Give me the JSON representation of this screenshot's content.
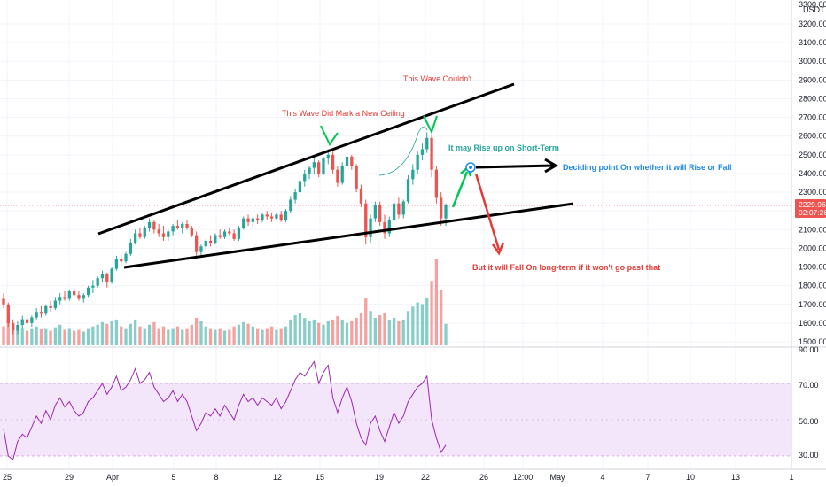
{
  "price_axis": {
    "currency": "USDT",
    "last_price": "2229.96",
    "countdown": "02:07:26",
    "ticks": [
      "3200.00",
      "3100.00",
      "3000.00",
      "2900.00",
      "2800.00",
      "2700.00",
      "2600.00",
      "2500.00",
      "2400.00",
      "2300.00",
      "2200.00",
      "2100.00",
      "2000.00",
      "1900.00",
      "1800.00",
      "1700.00",
      "1600.00",
      "1500.00"
    ],
    "top_partial": "3300.00"
  },
  "rsi_axis": {
    "ticks": [
      "90.00",
      "70.00",
      "50.00",
      "30.00"
    ]
  },
  "time_axis": {
    "labels": [
      "25",
      "29",
      "Apr",
      "5",
      "8",
      "12",
      "15",
      "19",
      "22",
      "26",
      "12:00",
      "May",
      "4",
      "7",
      "10",
      "13",
      "1"
    ]
  },
  "annotations": {
    "new_ceiling": "This Wave Did Mark a New Ceiling",
    "couldnt": "This Wave Couldn't",
    "rise_short": "It may Rise up on Short-Term",
    "deciding": "Deciding point On whether it will Rise or Fall",
    "fall_long": "But it will Fall On long-term if it won't go past that"
  },
  "colors": {
    "up": "#26a69a",
    "down": "#ef5350",
    "rsi_line": "#9c27b0",
    "rsi_band": "#f3e5fa",
    "trendline": "#000000",
    "arrow_green": "#00c853",
    "arrow_red": "#e53935",
    "deciding_text": "#1e88e5"
  },
  "chart_data": {
    "type": "candlestick",
    "ylim": [
      1480,
      3300
    ],
    "rsi_range": [
      30,
      70
    ],
    "candles": [
      [
        1730,
        1760,
        1680,
        1700
      ],
      [
        1700,
        1710,
        1580,
        1600
      ],
      [
        1600,
        1620,
        1540,
        1560
      ],
      [
        1560,
        1610,
        1540,
        1590
      ],
      [
        1590,
        1640,
        1570,
        1620
      ],
      [
        1620,
        1650,
        1590,
        1600
      ],
      [
        1600,
        1640,
        1580,
        1630
      ],
      [
        1630,
        1680,
        1620,
        1660
      ],
      [
        1660,
        1690,
        1630,
        1650
      ],
      [
        1650,
        1700,
        1640,
        1690
      ],
      [
        1690,
        1720,
        1660,
        1680
      ],
      [
        1680,
        1740,
        1670,
        1720
      ],
      [
        1720,
        1760,
        1700,
        1740
      ],
      [
        1740,
        1770,
        1720,
        1730
      ],
      [
        1730,
        1780,
        1720,
        1770
      ],
      [
        1770,
        1790,
        1740,
        1750
      ],
      [
        1750,
        1770,
        1720,
        1730
      ],
      [
        1730,
        1760,
        1710,
        1750
      ],
      [
        1750,
        1800,
        1740,
        1790
      ],
      [
        1790,
        1830,
        1760,
        1800
      ],
      [
        1800,
        1850,
        1790,
        1840
      ],
      [
        1840,
        1880,
        1820,
        1860
      ],
      [
        1860,
        1870,
        1790,
        1820
      ],
      [
        1820,
        1900,
        1810,
        1890
      ],
      [
        1890,
        1960,
        1880,
        1940
      ],
      [
        1940,
        1970,
        1910,
        1930
      ],
      [
        1930,
        1980,
        1920,
        1970
      ],
      [
        1970,
        2050,
        1960,
        2030
      ],
      [
        2030,
        2100,
        2020,
        2080
      ],
      [
        2080,
        2110,
        2050,
        2060
      ],
      [
        2060,
        2120,
        2050,
        2110
      ],
      [
        2110,
        2160,
        2090,
        2140
      ],
      [
        2140,
        2150,
        2080,
        2100
      ],
      [
        2100,
        2130,
        2060,
        2080
      ],
      [
        2080,
        2120,
        2040,
        2060
      ],
      [
        2060,
        2100,
        2040,
        2090
      ],
      [
        2090,
        2130,
        2070,
        2120
      ],
      [
        2120,
        2150,
        2100,
        2110
      ],
      [
        2110,
        2140,
        2080,
        2130
      ],
      [
        2130,
        2150,
        2100,
        2110
      ],
      [
        2110,
        2120,
        2060,
        2070
      ],
      [
        2070,
        2090,
        1960,
        1980
      ],
      [
        1980,
        2020,
        1950,
        2010
      ],
      [
        2010,
        2050,
        1990,
        2040
      ],
      [
        2040,
        2070,
        2010,
        2030
      ],
      [
        2030,
        2080,
        2020,
        2070
      ],
      [
        2070,
        2100,
        2050,
        2060
      ],
      [
        2060,
        2100,
        2050,
        2090
      ],
      [
        2090,
        2110,
        2070,
        2080
      ],
      [
        2080,
        2100,
        2040,
        2050
      ],
      [
        2050,
        2120,
        2040,
        2110
      ],
      [
        2110,
        2170,
        2100,
        2160
      ],
      [
        2160,
        2180,
        2120,
        2140
      ],
      [
        2140,
        2170,
        2110,
        2160
      ],
      [
        2160,
        2180,
        2130,
        2150
      ],
      [
        2150,
        2190,
        2140,
        2180
      ],
      [
        2180,
        2200,
        2150,
        2170
      ],
      [
        2170,
        2190,
        2140,
        2160
      ],
      [
        2160,
        2190,
        2150,
        2180
      ],
      [
        2180,
        2200,
        2140,
        2150
      ],
      [
        2150,
        2210,
        2140,
        2200
      ],
      [
        2200,
        2280,
        2190,
        2260
      ],
      [
        2260,
        2320,
        2240,
        2300
      ],
      [
        2300,
        2380,
        2290,
        2360
      ],
      [
        2360,
        2420,
        2330,
        2400
      ],
      [
        2400,
        2440,
        2370,
        2430
      ],
      [
        2430,
        2480,
        2400,
        2460
      ],
      [
        2460,
        2470,
        2380,
        2400
      ],
      [
        2400,
        2490,
        2390,
        2480
      ],
      [
        2480,
        2530,
        2450,
        2500
      ],
      [
        2500,
        2520,
        2400,
        2420
      ],
      [
        2420,
        2440,
        2330,
        2350
      ],
      [
        2350,
        2460,
        2340,
        2440
      ],
      [
        2440,
        2500,
        2420,
        2490
      ],
      [
        2490,
        2500,
        2420,
        2440
      ],
      [
        2440,
        2450,
        2300,
        2320
      ],
      [
        2320,
        2340,
        2220,
        2240
      ],
      [
        2240,
        2260,
        2020,
        2060
      ],
      [
        2060,
        2180,
        2030,
        2160
      ],
      [
        2160,
        2250,
        2140,
        2230
      ],
      [
        2230,
        2250,
        2120,
        2140
      ],
      [
        2140,
        2180,
        2050,
        2080
      ],
      [
        2080,
        2170,
        2060,
        2150
      ],
      [
        2150,
        2260,
        2130,
        2240
      ],
      [
        2240,
        2270,
        2160,
        2180
      ],
      [
        2180,
        2260,
        2160,
        2250
      ],
      [
        2250,
        2390,
        2240,
        2370
      ],
      [
        2370,
        2450,
        2340,
        2420
      ],
      [
        2420,
        2520,
        2400,
        2500
      ],
      [
        2500,
        2560,
        2470,
        2530
      ],
      [
        2530,
        2620,
        2510,
        2590
      ],
      [
        2590,
        2610,
        2380,
        2420
      ],
      [
        2420,
        2440,
        2240,
        2270
      ],
      [
        2270,
        2300,
        2120,
        2160
      ],
      [
        2160,
        2240,
        2120,
        2230
      ]
    ],
    "volumes": [
      0.22,
      0.3,
      0.25,
      0.18,
      0.2,
      0.17,
      0.2,
      0.22,
      0.19,
      0.2,
      0.17,
      0.21,
      0.24,
      0.18,
      0.2,
      0.17,
      0.18,
      0.16,
      0.2,
      0.22,
      0.24,
      0.27,
      0.25,
      0.28,
      0.3,
      0.22,
      0.2,
      0.25,
      0.3,
      0.22,
      0.2,
      0.24,
      0.27,
      0.2,
      0.22,
      0.18,
      0.2,
      0.22,
      0.18,
      0.2,
      0.24,
      0.32,
      0.28,
      0.22,
      0.2,
      0.18,
      0.2,
      0.17,
      0.18,
      0.22,
      0.24,
      0.27,
      0.25,
      0.22,
      0.2,
      0.18,
      0.2,
      0.22,
      0.18,
      0.2,
      0.22,
      0.3,
      0.35,
      0.38,
      0.32,
      0.28,
      0.3,
      0.26,
      0.24,
      0.28,
      0.3,
      0.34,
      0.3,
      0.26,
      0.28,
      0.32,
      0.38,
      0.55,
      0.4,
      0.32,
      0.35,
      0.38,
      0.3,
      0.32,
      0.28,
      0.3,
      0.4,
      0.45,
      0.5,
      0.48,
      0.55,
      0.75,
      1.0,
      0.65,
      0.25
    ],
    "rsi": [
      45,
      30,
      28,
      38,
      42,
      40,
      46,
      52,
      48,
      55,
      50,
      58,
      62,
      57,
      60,
      55,
      52,
      54,
      60,
      62,
      66,
      70,
      64,
      68,
      74,
      66,
      68,
      72,
      78,
      70,
      72,
      76,
      68,
      64,
      60,
      62,
      66,
      60,
      64,
      60,
      52,
      44,
      48,
      54,
      52,
      56,
      52,
      58,
      54,
      50,
      58,
      64,
      60,
      62,
      58,
      62,
      60,
      58,
      62,
      56,
      60,
      66,
      72,
      76,
      74,
      78,
      82,
      70,
      76,
      80,
      62,
      54,
      62,
      68,
      60,
      48,
      40,
      36,
      48,
      52,
      44,
      38,
      46,
      54,
      48,
      52,
      60,
      64,
      68,
      70,
      74,
      50,
      40,
      32,
      36
    ]
  }
}
